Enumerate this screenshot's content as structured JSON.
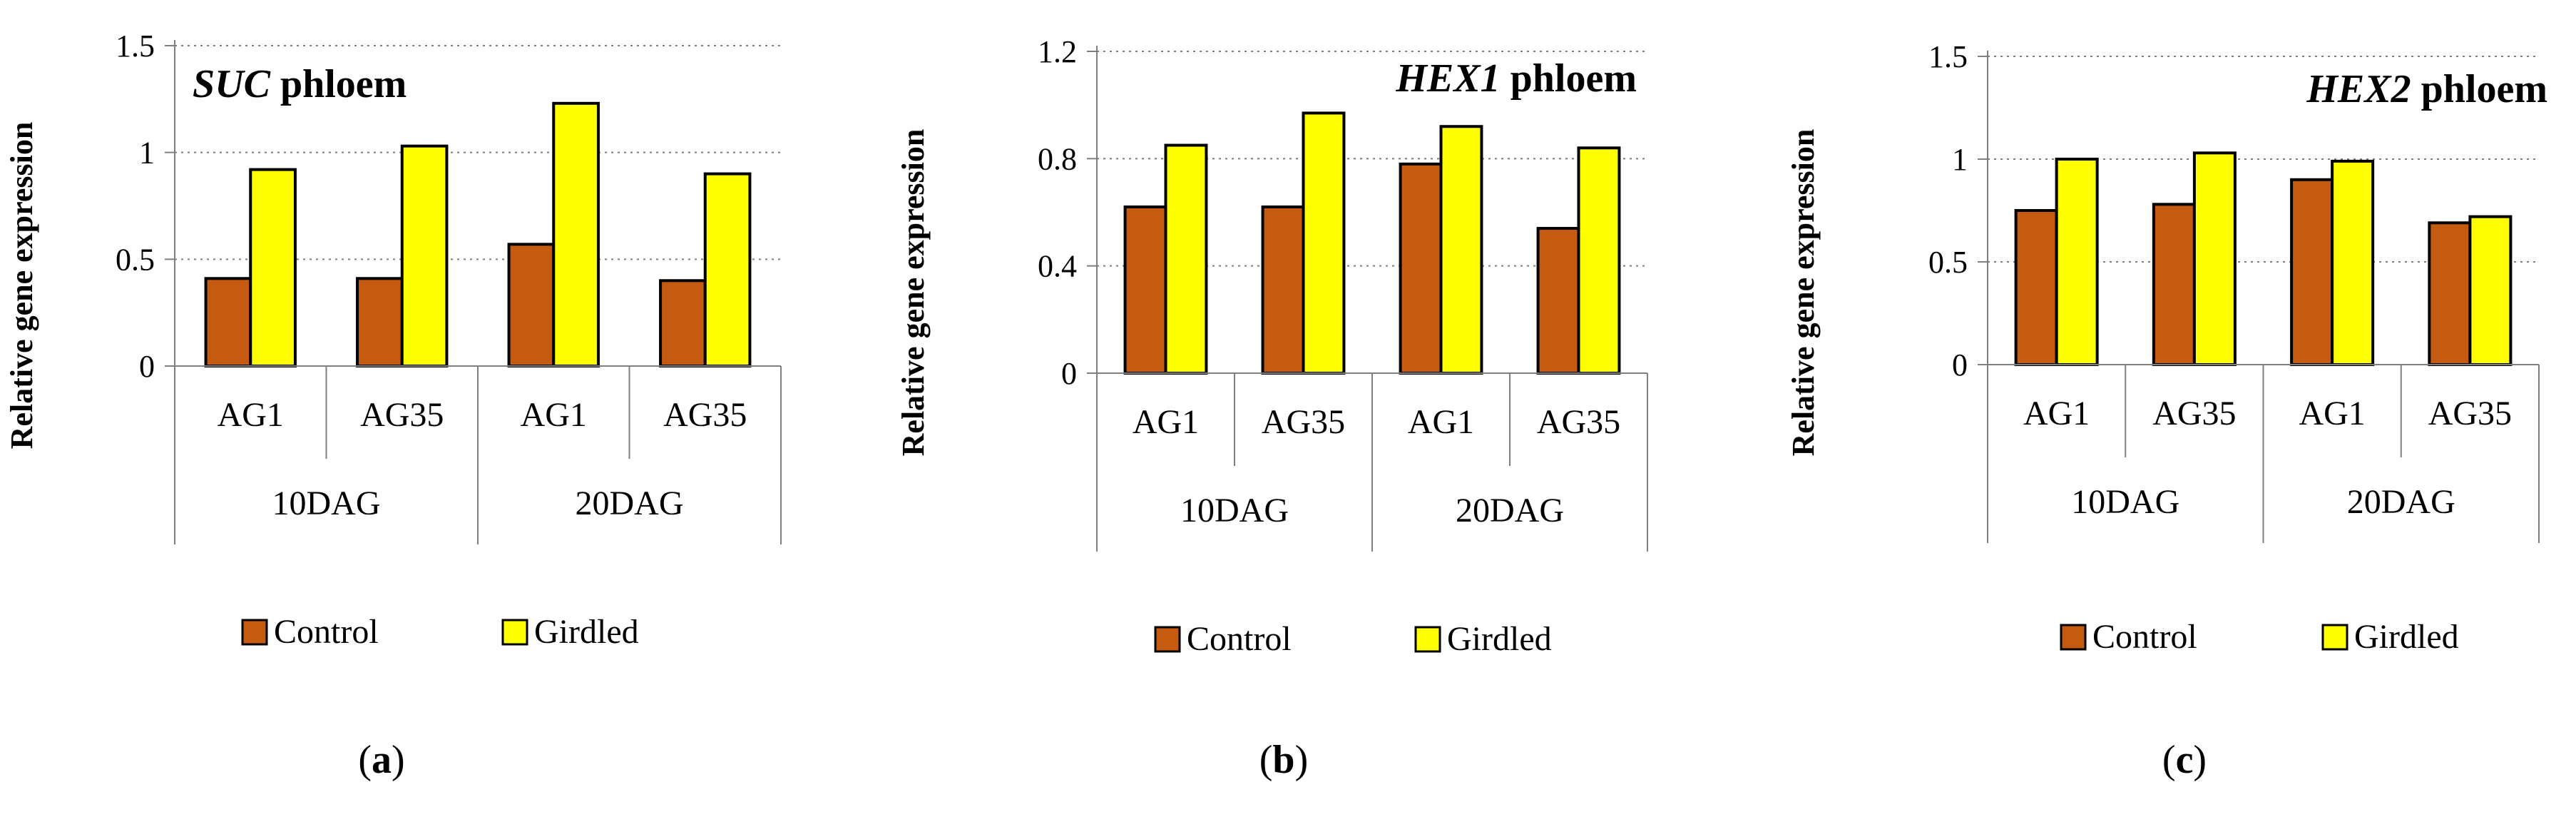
{
  "chart_data": [
    {
      "type": "bar",
      "panel": "a",
      "panel_label": "a",
      "title_gene": "SUC",
      "title_rest": " phloem",
      "ylabel": "Relative gene expression",
      "ylim": [
        0,
        1.5
      ],
      "yticks": [
        0,
        0.5,
        1,
        1.5
      ],
      "ytick_labels": [
        "0",
        "0.5",
        "1",
        "1.5"
      ],
      "categories": [
        "AG1",
        "AG35",
        "AG1",
        "AG35"
      ],
      "groups": [
        {
          "label": "10DAG",
          "span": 2
        },
        {
          "label": "20DAG",
          "span": 2
        }
      ],
      "series": [
        {
          "name": "Control",
          "color": "#c55a11",
          "values": [
            0.41,
            0.41,
            0.57,
            0.4
          ]
        },
        {
          "name": "Girdled",
          "color": "#ffff00",
          "values": [
            0.92,
            1.03,
            1.23,
            0.9
          ]
        }
      ],
      "legend": [
        "Control",
        "Girdled"
      ],
      "grid": true
    },
    {
      "type": "bar",
      "panel": "b",
      "panel_label": "b",
      "title_gene": "HEX1",
      "title_rest": " phloem",
      "ylabel": "Relative gene expression",
      "ylim": [
        0,
        1.2
      ],
      "yticks": [
        0,
        0.4,
        0.8,
        1.2
      ],
      "ytick_labels": [
        "0",
        "0.4",
        "0.8",
        "1.2"
      ],
      "categories": [
        "AG1",
        "AG35",
        "AG1",
        "AG35"
      ],
      "groups": [
        {
          "label": "10DAG",
          "span": 2
        },
        {
          "label": "20DAG",
          "span": 2
        }
      ],
      "series": [
        {
          "name": "Control",
          "color": "#c55a11",
          "values": [
            0.62,
            0.62,
            0.78,
            0.54
          ]
        },
        {
          "name": "Girdled",
          "color": "#ffff00",
          "values": [
            0.85,
            0.97,
            0.92,
            0.84
          ]
        }
      ],
      "legend": [
        "Control",
        "Girdled"
      ],
      "grid": true
    },
    {
      "type": "bar",
      "panel": "c",
      "panel_label": "c",
      "title_gene": "HEX2",
      "title_rest": " phloem",
      "ylabel": "Relative gene expression",
      "ylim": [
        0,
        1.5
      ],
      "yticks": [
        0,
        0.5,
        1,
        1.5
      ],
      "ytick_labels": [
        "0",
        "0.5",
        "1",
        "1.5"
      ],
      "categories": [
        "AG1",
        "AG35",
        "AG1",
        "AG35"
      ],
      "groups": [
        {
          "label": "10DAG",
          "span": 2
        },
        {
          "label": "20DAG",
          "span": 2
        }
      ],
      "series": [
        {
          "name": "Control",
          "color": "#c55a11",
          "values": [
            0.75,
            0.78,
            0.9,
            0.69
          ]
        },
        {
          "name": "Girdled",
          "color": "#ffff00",
          "values": [
            1.0,
            1.03,
            0.99,
            0.72
          ]
        }
      ],
      "legend": [
        "Control",
        "Girdled"
      ],
      "grid": true
    }
  ]
}
